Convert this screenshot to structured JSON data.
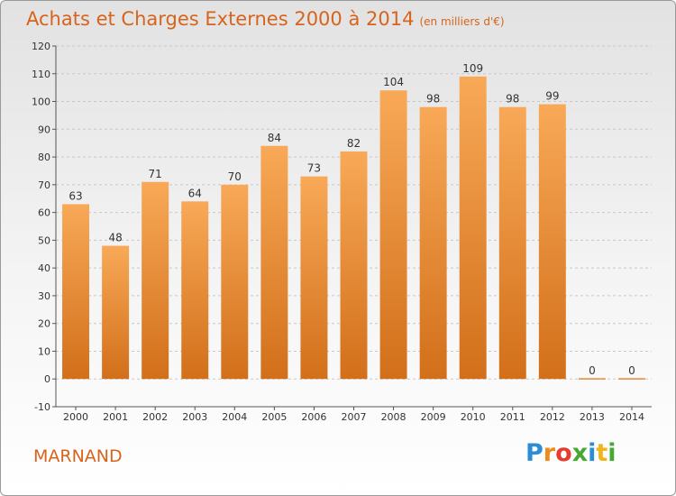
{
  "title": "Achats et Charges Externes 2000 à 2014",
  "unit_note": "(en milliers d'€)",
  "commune": "MARNAND",
  "logo": {
    "text": "Proxiti",
    "letters": [
      "P",
      "r",
      "o",
      "x",
      "i",
      "t",
      "i"
    ],
    "colors": [
      "#2b8dd4",
      "#f08a1c",
      "#e43d2f",
      "#48a832",
      "#2b8dd4",
      "#f0b41c",
      "#48a832"
    ]
  },
  "colors": {
    "bar_top": "#f8a957",
    "bar_bottom": "#d26f1a",
    "accent": "#d7641c"
  },
  "chart_data": {
    "type": "bar",
    "title": "Achats et Charges Externes 2000 à 2014",
    "categories": [
      "2000",
      "2001",
      "2002",
      "2003",
      "2004",
      "2005",
      "2006",
      "2007",
      "2008",
      "2009",
      "2010",
      "2011",
      "2012",
      "2013",
      "2014"
    ],
    "values": [
      63,
      48,
      71,
      64,
      70,
      84,
      73,
      82,
      104,
      98,
      109,
      98,
      99,
      0,
      0
    ],
    "xlabel": "",
    "ylabel": "",
    "ylim": [
      -10,
      120
    ],
    "yticks": [
      -10,
      0,
      10,
      20,
      30,
      40,
      50,
      60,
      70,
      80,
      90,
      100,
      110,
      120
    ],
    "grid": true,
    "legend": "none"
  }
}
